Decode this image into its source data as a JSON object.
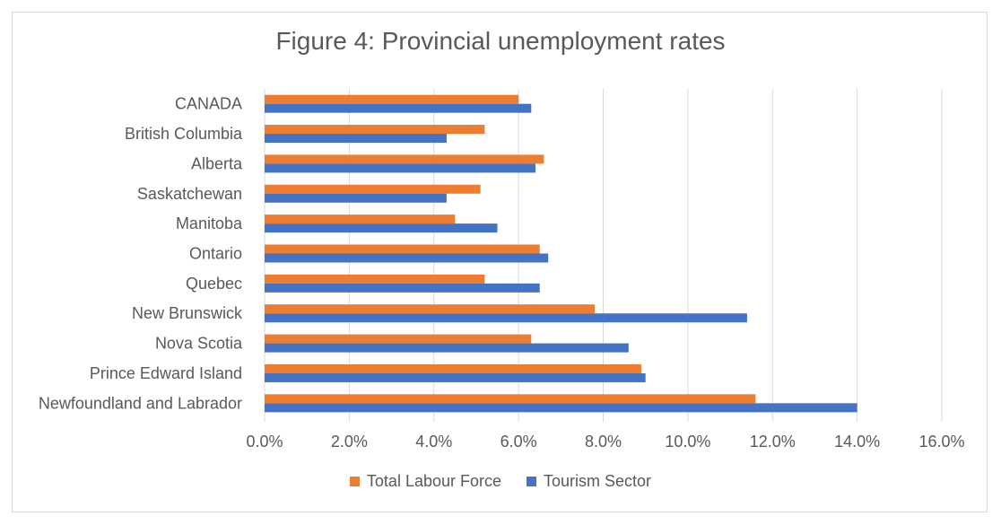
{
  "chart_data": {
    "type": "bar",
    "orientation": "horizontal",
    "title": "Figure 4: Provincial unemployment rates",
    "xlabel": "",
    "ylabel": "",
    "xlim": [
      0,
      0.16
    ],
    "x_ticks": [
      0,
      0.02,
      0.04,
      0.06,
      0.08,
      0.1,
      0.12,
      0.14,
      0.16
    ],
    "x_tick_labels": [
      "0.0%",
      "2.0%",
      "4.0%",
      "6.0%",
      "8.0%",
      "10.0%",
      "12.0%",
      "14.0%",
      "16.0%"
    ],
    "grid": true,
    "legend_position": "bottom",
    "categories": [
      "CANADA",
      "British Columbia",
      "Alberta",
      "Saskatchewan",
      "Manitoba",
      "Ontario",
      "Quebec",
      "New Brunswick",
      "Nova Scotia",
      "Prince Edward Island",
      "Newfoundland and Labrador"
    ],
    "series": [
      {
        "name": "Total Labour Force",
        "color": "#ed7d31",
        "values": [
          0.06,
          0.052,
          0.066,
          0.051,
          0.045,
          0.065,
          0.052,
          0.078,
          0.063,
          0.089,
          0.116
        ]
      },
      {
        "name": "Tourism Sector",
        "color": "#4472c4",
        "values": [
          0.063,
          0.043,
          0.064,
          0.043,
          0.055,
          0.067,
          0.065,
          0.114,
          0.086,
          0.09,
          0.14
        ]
      }
    ]
  }
}
